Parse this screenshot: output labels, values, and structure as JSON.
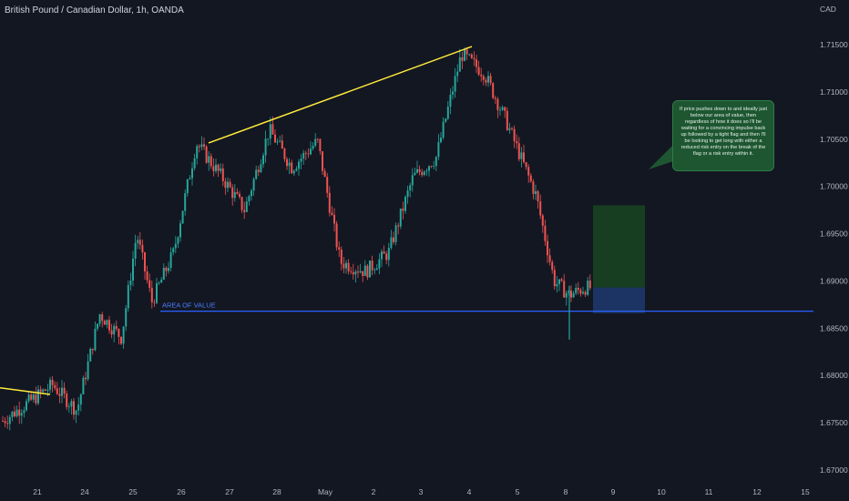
{
  "header": {
    "title": "British Pound / Canadian Dollar, 1h, OANDA",
    "currency": "CAD"
  },
  "note": {
    "text": "If price pushes down to and ideally just below our area of value, then regardless of how it does so I'll be waiting for a convincing impulse back up followed by a tight flag and then I'll be looking to get long with either a reduced risk entry on the break of the flag or a risk entry within it."
  },
  "colors": {
    "background": "#131722",
    "up": "#26a69a",
    "down": "#ef5350",
    "trendline": "#ffeb3b",
    "zone_line": "#2962ff",
    "profit_zone": "#1b5e20",
    "stop_zone": "#1e3a6e",
    "note_bg": "#1e5631"
  },
  "chart_data": {
    "type": "candlestick",
    "title": "British Pound / Canadian Dollar, 1h, OANDA",
    "y_axis": {
      "label": "CAD",
      "ticks": [
        "1.71500",
        "1.71000",
        "1.70500",
        "1.70000",
        "1.69500",
        "1.69000",
        "1.68500",
        "1.68000",
        "1.67500",
        "1.67000"
      ],
      "range": [
        1.6695,
        1.7175
      ]
    },
    "x_axis": {
      "ticks": [
        "21",
        "24",
        "25",
        "26",
        "27",
        "28",
        "May",
        "2",
        "3",
        "4",
        "5",
        "8",
        "9",
        "10",
        "11",
        "12",
        "15"
      ]
    },
    "grid": false,
    "annotation_label": "AREA OF VALUE",
    "area_of_value": 1.6868,
    "trendlines": [
      {
        "from": [
          "21",
          1.6787
        ],
        "to": [
          "21",
          1.678
        ]
      },
      {
        "from": [
          "26",
          1.7046
        ],
        "to": [
          "4",
          1.7148
        ]
      }
    ],
    "trade_setup": {
      "entry": 1.6893,
      "target": 1.698,
      "stop": 1.6866,
      "from": "8",
      "to": "9"
    },
    "price_path": [
      [
        "21",
        1.6752
      ],
      [
        "21",
        1.679
      ],
      [
        "24",
        1.6763
      ],
      [
        "24",
        1.6865
      ],
      [
        "25",
        1.684
      ],
      [
        "25",
        1.695
      ],
      [
        "25",
        1.6878
      ],
      [
        "26",
        1.693
      ],
      [
        "26",
        1.7046
      ],
      [
        "27",
        1.701
      ],
      [
        "27",
        1.6975
      ],
      [
        "28",
        1.706
      ],
      [
        "28",
        1.702
      ],
      [
        "May",
        1.7048
      ],
      [
        "May",
        1.692
      ],
      [
        "2",
        1.691
      ],
      [
        "2",
        1.693
      ],
      [
        "3",
        1.701
      ],
      [
        "3",
        1.703
      ],
      [
        "4",
        1.714
      ],
      [
        "4",
        1.712
      ],
      [
        "5",
        1.707
      ],
      [
        "5",
        1.703
      ],
      [
        "5",
        1.699
      ],
      [
        "8",
        1.69
      ],
      [
        "8",
        1.6885
      ],
      [
        "8",
        1.6893
      ]
    ]
  }
}
